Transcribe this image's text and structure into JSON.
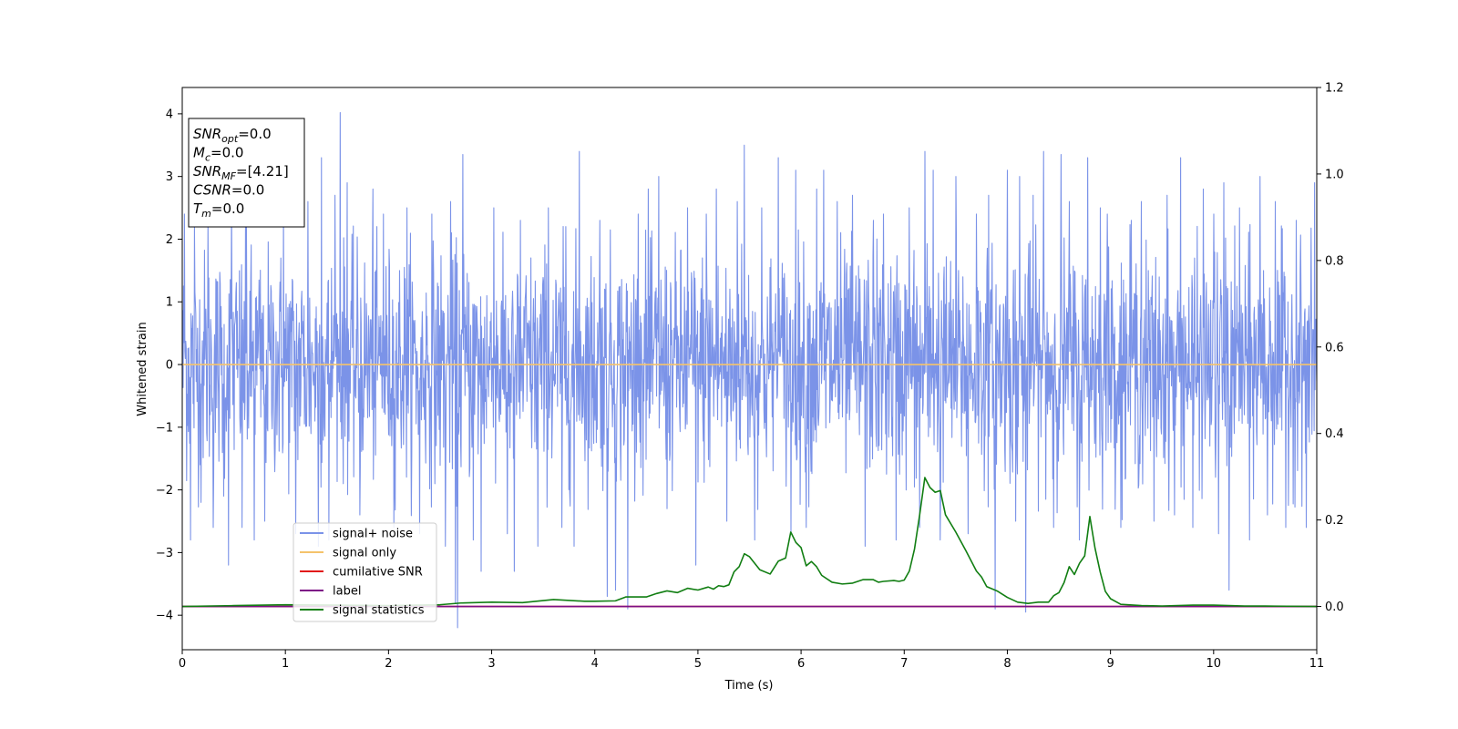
{
  "chart_data": {
    "type": "line",
    "xlabel": "Time (s)",
    "ylabel": "Whitened strain",
    "xlim": [
      0,
      11
    ],
    "ylim": [
      -4.55,
      4.42
    ],
    "y2lim": [
      -0.1,
      1.2
    ],
    "x_ticks": [
      0,
      1,
      2,
      3,
      4,
      5,
      6,
      7,
      8,
      9,
      10,
      11
    ],
    "y_ticks": [
      4,
      3,
      2,
      1,
      0,
      -1,
      -2,
      -3,
      -4
    ],
    "y2_ticks": [
      1.2,
      1.0,
      0.8,
      0.6,
      0.4,
      0.2,
      0.0
    ],
    "x_tick_labels": [
      "0",
      "1",
      "2",
      "3",
      "4",
      "5",
      "6",
      "7",
      "8",
      "9",
      "10",
      "11"
    ],
    "y_tick_labels": [
      "4",
      "3",
      "2",
      "1",
      "0",
      "−1",
      "−2",
      "−3",
      "−4"
    ],
    "y2_tick_labels": [
      "1.2",
      "1.0",
      "0.8",
      "0.6",
      "0.4",
      "0.2",
      "0.0"
    ],
    "grid": false,
    "legend_position": "lower-left",
    "info_box": {
      "lines": [
        {
          "sym": "SNR",
          "sub": "opt",
          "val": "=0.0"
        },
        {
          "sym": "M",
          "sub": "c",
          "val": "=0.0"
        },
        {
          "sym": "SNR",
          "sub": "MF",
          "val": "=[4.21]"
        },
        {
          "sym": "CSNR",
          "sub": "",
          "val": "=0.0"
        },
        {
          "sym": "T",
          "sub": "m",
          "val": "=0.0"
        }
      ]
    },
    "series": [
      {
        "name": "signal+ noise",
        "color": "#7b93e8",
        "axis": "left",
        "kind": "noise",
        "noise_sigma": 0.9,
        "noise_peaks": [
          {
            "x": 0.02,
            "y": 2.4
          },
          {
            "x": 0.08,
            "y": -2.8
          },
          {
            "x": 0.12,
            "y": 2.2
          },
          {
            "x": 0.18,
            "y": -2.2
          },
          {
            "x": 0.25,
            "y": 2.3
          },
          {
            "x": 0.3,
            "y": -2.6
          },
          {
            "x": 0.4,
            "y": -2.1
          },
          {
            "x": 0.45,
            "y": -3.2
          },
          {
            "x": 0.48,
            "y": 2.7
          },
          {
            "x": 0.58,
            "y": -2.6
          },
          {
            "x": 0.62,
            "y": 2.4
          },
          {
            "x": 0.7,
            "y": -2.8
          },
          {
            "x": 0.8,
            "y": -2.5
          },
          {
            "x": 0.98,
            "y": 2.6
          },
          {
            "x": 1.1,
            "y": -2.7
          },
          {
            "x": 1.22,
            "y": 2.6
          },
          {
            "x": 1.32,
            "y": -2.9
          },
          {
            "x": 1.35,
            "y": 3.3
          },
          {
            "x": 1.42,
            "y": -2.8
          },
          {
            "x": 1.48,
            "y": 2.7
          },
          {
            "x": 1.53,
            "y": 4.02
          },
          {
            "x": 1.6,
            "y": 2.9
          },
          {
            "x": 1.72,
            "y": -2.4
          },
          {
            "x": 1.85,
            "y": 2.8
          },
          {
            "x": 1.95,
            "y": 2.4
          },
          {
            "x": 2.05,
            "y": -2.6
          },
          {
            "x": 2.18,
            "y": 2.5
          },
          {
            "x": 2.3,
            "y": -2.7
          },
          {
            "x": 2.42,
            "y": 2.4
          },
          {
            "x": 2.55,
            "y": -2.9
          },
          {
            "x": 2.6,
            "y": 2.6
          },
          {
            "x": 2.65,
            "y": -3.8
          },
          {
            "x": 2.67,
            "y": -4.2
          },
          {
            "x": 2.72,
            "y": 3.35
          },
          {
            "x": 2.82,
            "y": -2.8
          },
          {
            "x": 2.9,
            "y": -3.3
          },
          {
            "x": 3.02,
            "y": 2.5
          },
          {
            "x": 3.15,
            "y": -2.7
          },
          {
            "x": 3.22,
            "y": -3.3
          },
          {
            "x": 3.28,
            "y": 2.3
          },
          {
            "x": 3.45,
            "y": -2.9
          },
          {
            "x": 3.55,
            "y": 2.5
          },
          {
            "x": 3.68,
            "y": -2.6
          },
          {
            "x": 3.72,
            "y": 2.2
          },
          {
            "x": 3.8,
            "y": -2.9
          },
          {
            "x": 3.85,
            "y": 3.4
          },
          {
            "x": 4.05,
            "y": 2.3
          },
          {
            "x": 4.12,
            "y": -3.7
          },
          {
            "x": 4.2,
            "y": -3.6
          },
          {
            "x": 4.32,
            "y": -3.9
          },
          {
            "x": 4.42,
            "y": 2.4
          },
          {
            "x": 4.52,
            "y": 2.8
          },
          {
            "x": 4.62,
            "y": 3.0
          },
          {
            "x": 4.7,
            "y": -2.3
          },
          {
            "x": 4.9,
            "y": 2.5
          },
          {
            "x": 4.98,
            "y": -3.2
          },
          {
            "x": 5.08,
            "y": 2.4
          },
          {
            "x": 5.18,
            "y": 2.8
          },
          {
            "x": 5.28,
            "y": -2.5
          },
          {
            "x": 5.38,
            "y": 2.6
          },
          {
            "x": 5.45,
            "y": 3.5
          },
          {
            "x": 5.55,
            "y": -2.8
          },
          {
            "x": 5.62,
            "y": 2.5
          },
          {
            "x": 5.78,
            "y": 3.3
          },
          {
            "x": 5.9,
            "y": -2.7
          },
          {
            "x": 5.95,
            "y": 3.1
          },
          {
            "x": 6.05,
            "y": -2.6
          },
          {
            "x": 6.15,
            "y": 2.8
          },
          {
            "x": 6.22,
            "y": 3.1
          },
          {
            "x": 6.35,
            "y": 2.6
          },
          {
            "x": 6.5,
            "y": 2.7
          },
          {
            "x": 6.62,
            "y": -2.9
          },
          {
            "x": 6.7,
            "y": 2.3
          },
          {
            "x": 6.8,
            "y": 2.4
          },
          {
            "x": 6.92,
            "y": -2.8
          },
          {
            "x": 7.05,
            "y": 2.5
          },
          {
            "x": 7.15,
            "y": -2.6
          },
          {
            "x": 7.2,
            "y": 3.4
          },
          {
            "x": 7.28,
            "y": 3.1
          },
          {
            "x": 7.35,
            "y": -2.8
          },
          {
            "x": 7.5,
            "y": 3.0
          },
          {
            "x": 7.62,
            "y": -2.7
          },
          {
            "x": 7.7,
            "y": 2.4
          },
          {
            "x": 7.82,
            "y": 2.7
          },
          {
            "x": 7.88,
            "y": -3.9
          },
          {
            "x": 8.0,
            "y": 3.1
          },
          {
            "x": 8.08,
            "y": -2.5
          },
          {
            "x": 8.12,
            "y": 3.0
          },
          {
            "x": 8.18,
            "y": -3.95
          },
          {
            "x": 8.25,
            "y": 2.7
          },
          {
            "x": 8.35,
            "y": 3.4
          },
          {
            "x": 8.45,
            "y": -2.6
          },
          {
            "x": 8.52,
            "y": 3.35
          },
          {
            "x": 8.6,
            "y": 2.6
          },
          {
            "x": 8.7,
            "y": -2.8
          },
          {
            "x": 8.78,
            "y": 3.3
          },
          {
            "x": 8.9,
            "y": 2.5
          },
          {
            "x": 8.97,
            "y": 2.4
          },
          {
            "x": 9.1,
            "y": -2.6
          },
          {
            "x": 9.2,
            "y": 2.3
          },
          {
            "x": 9.3,
            "y": 2.6
          },
          {
            "x": 9.42,
            "y": -2.5
          },
          {
            "x": 9.55,
            "y": 2.7
          },
          {
            "x": 9.62,
            "y": -2.4
          },
          {
            "x": 9.68,
            "y": 3.3
          },
          {
            "x": 9.8,
            "y": -2.6
          },
          {
            "x": 9.9,
            "y": 2.8
          },
          {
            "x": 10.0,
            "y": 2.4
          },
          {
            "x": 10.05,
            "y": -2.7
          },
          {
            "x": 10.1,
            "y": 2.9
          },
          {
            "x": 10.15,
            "y": -3.6
          },
          {
            "x": 10.25,
            "y": 2.5
          },
          {
            "x": 10.35,
            "y": -2.8
          },
          {
            "x": 10.45,
            "y": 3.0
          },
          {
            "x": 10.52,
            "y": -2.4
          },
          {
            "x": 10.6,
            "y": 2.6
          },
          {
            "x": 10.7,
            "y": -2.6
          },
          {
            "x": 10.8,
            "y": 2.3
          },
          {
            "x": 10.9,
            "y": -2.6
          },
          {
            "x": 10.98,
            "y": 2.9
          }
        ]
      },
      {
        "name": "signal only",
        "color": "#f5c36b",
        "axis": "left",
        "x": [
          0,
          11
        ],
        "y": [
          0,
          0
        ]
      },
      {
        "name": "cumilative SNR",
        "color": "#e11a1a",
        "axis": "right",
        "x": [
          0,
          11
        ],
        "y": [
          0,
          0
        ]
      },
      {
        "name": "label",
        "color": "#7d0f86",
        "axis": "right",
        "x": [
          0,
          11
        ],
        "y": [
          0,
          0
        ]
      },
      {
        "name": "signal statistics",
        "color": "#117e12",
        "axis": "right",
        "x": [
          0,
          0.5,
          1.0,
          1.5,
          2.0,
          2.5,
          2.7,
          3.0,
          3.3,
          3.6,
          3.9,
          4.0,
          4.2,
          4.3,
          4.5,
          4.6,
          4.7,
          4.8,
          4.9,
          5.0,
          5.1,
          5.15,
          5.2,
          5.25,
          5.3,
          5.35,
          5.4,
          5.45,
          5.5,
          5.55,
          5.6,
          5.7,
          5.78,
          5.85,
          5.9,
          5.95,
          6.0,
          6.05,
          6.1,
          6.15,
          6.2,
          6.3,
          6.4,
          6.5,
          6.6,
          6.7,
          6.75,
          6.8,
          6.9,
          6.95,
          7.0,
          7.05,
          7.1,
          7.15,
          7.2,
          7.25,
          7.3,
          7.35,
          7.4,
          7.5,
          7.6,
          7.7,
          7.75,
          7.8,
          7.9,
          8.0,
          8.1,
          8.2,
          8.3,
          8.4,
          8.45,
          8.5,
          8.55,
          8.6,
          8.65,
          8.7,
          8.75,
          8.8,
          8.85,
          8.9,
          8.95,
          9.0,
          9.1,
          9.3,
          9.5,
          9.8,
          10.0,
          10.3,
          10.5,
          11.0
        ],
        "y": [
          0.0,
          0.002,
          0.004,
          0.003,
          0.002,
          0.004,
          0.008,
          0.01,
          0.009,
          0.016,
          0.012,
          0.012,
          0.013,
          0.022,
          0.022,
          0.03,
          0.036,
          0.032,
          0.042,
          0.038,
          0.045,
          0.04,
          0.048,
          0.046,
          0.05,
          0.08,
          0.092,
          0.122,
          0.115,
          0.1,
          0.085,
          0.075,
          0.105,
          0.112,
          0.172,
          0.148,
          0.136,
          0.094,
          0.104,
          0.092,
          0.072,
          0.056,
          0.052,
          0.054,
          0.062,
          0.062,
          0.056,
          0.058,
          0.06,
          0.058,
          0.061,
          0.082,
          0.133,
          0.212,
          0.298,
          0.275,
          0.264,
          0.268,
          0.212,
          0.172,
          0.128,
          0.082,
          0.068,
          0.046,
          0.036,
          0.021,
          0.01,
          0.007,
          0.01,
          0.01,
          0.025,
          0.032,
          0.055,
          0.092,
          0.074,
          0.1,
          0.117,
          0.208,
          0.135,
          0.08,
          0.035,
          0.018,
          0.005,
          0.002,
          0.001,
          0.003,
          0.003,
          0.001,
          0.001,
          0.0
        ]
      }
    ]
  }
}
